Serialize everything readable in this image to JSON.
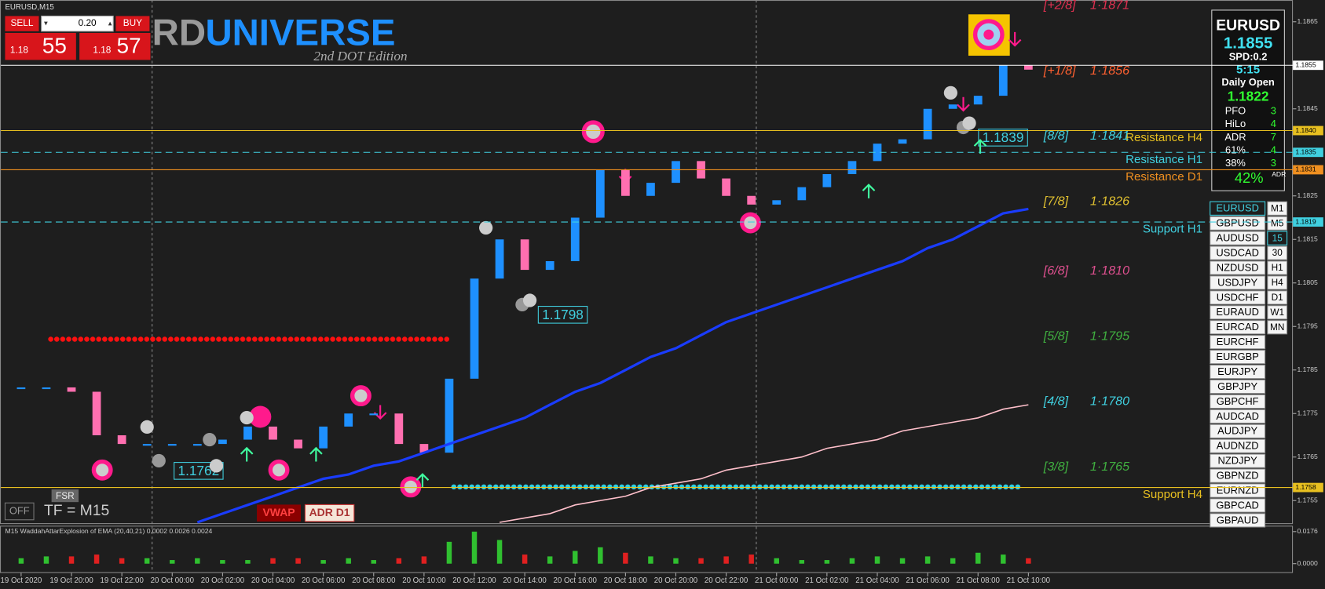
{
  "window_title": "EURUSD,M15",
  "trade_panel": {
    "sell": "SELL",
    "lot": "0.20",
    "buy": "BUY",
    "bid_big": "1.18",
    "bid_pips": "55",
    "ask_big": "1.18",
    "ask_pips": "57"
  },
  "logo": {
    "prefix": "RD",
    "name": "UNIVERSE",
    "edition": "2nd DOT Edition"
  },
  "info_panel": {
    "symbol": "EURUSD",
    "price": "1.1855",
    "spread": "SPD:0.2",
    "timer": "5:15",
    "daily_open_label": "Daily Open",
    "daily_open": "1.1822",
    "rows": [
      [
        "PFO",
        "3"
      ],
      [
        "HiLo",
        "4"
      ],
      [
        "ADR",
        "7"
      ],
      [
        "61%",
        "4"
      ],
      [
        "38%",
        "3"
      ]
    ],
    "adr_pct": "42%",
    "adr_label": "ADR"
  },
  "symbols": [
    "EURUSD",
    "GBPUSD",
    "AUDUSD",
    "USDCAD",
    "NZDUSD",
    "USDJPY",
    "USDCHF",
    "EURAUD",
    "EURCAD",
    "EURCHF",
    "EURGBP",
    "EURJPY",
    "GBPJPY",
    "GBPCHF",
    "AUDCAD",
    "AUDJPY",
    "AUDNZD",
    "NZDJPY",
    "GBPNZD",
    "EURNZD",
    "GBPCAD",
    "GBPAUD"
  ],
  "timeframes": [
    "M1",
    "M5",
    "15",
    "30",
    "H1",
    "H4",
    "D1",
    "W1",
    "MN"
  ],
  "buttons": {
    "fsr": "FSR",
    "off": "OFF",
    "tf": "TF = M15",
    "vwap": "VWAP",
    "adr": "ADR D1"
  },
  "annotations": [
    "1.1762",
    "1.1798",
    "1.1839"
  ],
  "chart_data": [
    {
      "type": "candlestick",
      "categories": [
        "19 Oct 2020",
        null,
        "19 Oct 20:00",
        null,
        "19 Oct 22:00",
        null,
        "20 Oct 00:00",
        null,
        "20 Oct 02:00",
        null,
        "20 Oct 04:00",
        null,
        "20 Oct 06:00",
        null,
        "20 Oct 08:00",
        null,
        "20 Oct 10:00",
        null,
        "20 Oct 12:00",
        null,
        "20 Oct 14:00",
        null,
        "20 Oct 16:00",
        null,
        "20 Oct 18:00",
        null,
        "20 Oct 20:00",
        null,
        "20 Oct 22:00",
        null,
        "21 Oct 00:00",
        null,
        "21 Oct 02:00",
        null,
        "21 Oct 04:00",
        null,
        "21 Oct 06:00",
        null,
        "21 Oct 08:00",
        null,
        "21 Oct 10:00"
      ],
      "series": [
        {
          "style": "candles",
          "up_color": "#1e90ff",
          "down_color": "#ff6fb0",
          "values": [
            1.1781,
            1.1781,
            1.178,
            1.177,
            1.1768,
            1.1768,
            1.1768,
            1.1768,
            1.1769,
            1.1772,
            1.1769,
            1.1767,
            1.1772,
            1.1775,
            1.1775,
            1.1768,
            1.1766,
            1.1783,
            1.1806,
            1.1815,
            1.1808,
            1.181,
            1.182,
            1.1831,
            1.1825,
            1.1828,
            1.1833,
            1.1829,
            1.1825,
            1.1823,
            1.1824,
            1.1827,
            1.183,
            1.1833,
            1.1837,
            1.1838,
            1.1845,
            1.1846,
            1.1848,
            1.1855,
            1.1854
          ]
        },
        {
          "style": "line",
          "color": "#1a3cff",
          "values": [
            null,
            null,
            null,
            null,
            null,
            null,
            null,
            1.175,
            1.1752,
            1.1754,
            1.1756,
            1.1758,
            1.176,
            1.1761,
            1.1763,
            1.1764,
            1.1766,
            1.1768,
            1.177,
            1.1772,
            1.1774,
            1.1777,
            1.178,
            1.1782,
            1.1785,
            1.1788,
            1.179,
            1.1793,
            1.1796,
            1.1798,
            1.18,
            1.1802,
            1.1804,
            1.1806,
            1.1808,
            1.181,
            1.1813,
            1.1815,
            1.1818,
            1.1821,
            1.1822
          ]
        },
        {
          "style": "line",
          "color": "#ffc0cb",
          "values": [
            null,
            null,
            null,
            null,
            null,
            null,
            null,
            null,
            null,
            null,
            null,
            null,
            null,
            null,
            null,
            null,
            null,
            null,
            null,
            1.175,
            1.1751,
            1.1752,
            1.1754,
            1.1755,
            1.1756,
            1.1758,
            1.1759,
            1.176,
            1.1762,
            1.1763,
            1.1764,
            1.1765,
            1.1767,
            1.1768,
            1.1769,
            1.1771,
            1.1772,
            1.1773,
            1.1774,
            1.1776,
            1.1777
          ]
        }
      ],
      "ylim": [
        1.175,
        1.187
      ],
      "yticks": [
        1.1755,
        1.1765,
        1.1775,
        1.1785,
        1.1795,
        1.1805,
        1.1815,
        1.1825,
        1.1835,
        1.1845,
        1.1855,
        1.1865
      ],
      "levels": [
        {
          "price": {
            "value": 1.1855,
            "label": "1.1855"
          },
          "color": "#ffffff",
          "dashed": false
        },
        {
          "name": "Resistance H4",
          "price": {
            "value": 1.184,
            "label": "1.1840"
          },
          "color": "#e8c020",
          "dashed": false
        },
        {
          "name": "Resistance H1",
          "price": {
            "value": 1.1835,
            "label": "1.1835"
          },
          "color": "#40d0e0",
          "dashed": true
        },
        {
          "name": "Resistance D1",
          "price": {
            "value": 1.1831,
            "label": "1.1831"
          },
          "color": "#f09020",
          "dashed": false
        },
        {
          "name": "Support H1",
          "price": {
            "value": 1.1819,
            "label": "1.1819"
          },
          "color": "#40d0e0",
          "dashed": true
        },
        {
          "name": "Support H4",
          "price": {
            "value": 1.1758,
            "label": "1.1758"
          },
          "color": "#e8c020",
          "dashed": false
        }
      ],
      "murrey": [
        {
          "label": "[+2/8]",
          "price": {
            "value": 1.1871,
            "label": "1·1871"
          },
          "color": "#e03050"
        },
        {
          "label": "[+1/8]",
          "price": {
            "value": 1.1856,
            "label": "1·1856"
          },
          "color": "#ff6030"
        },
        {
          "label": "[8/8]",
          "price": {
            "value": 1.1841,
            "label": "1·1841"
          },
          "color": "#40d0e0"
        },
        {
          "label": "[7/8]",
          "price": {
            "value": 1.1826,
            "label": "1·1826"
          },
          "color": "#e0c030"
        },
        {
          "label": "[6/8]",
          "price": {
            "value": 1.181,
            "label": "1·1810"
          },
          "color": "#e05090"
        },
        {
          "label": "[5/8]",
          "price": {
            "value": 1.1795,
            "label": "1·1795"
          },
          "color": "#40b040"
        },
        {
          "label": "[4/8]",
          "price": {
            "value": 1.178,
            "label": "1·1780"
          },
          "color": "#40d0e0"
        },
        {
          "label": "[3/8]",
          "price": {
            "value": 1.1765,
            "label": "1·1765"
          },
          "color": "#40b040"
        }
      ]
    },
    {
      "type": "bar",
      "title": "M15  WaddahAttarExplosion of EMA (20,40,21) 0.0002 0.0026 0.0024",
      "up_color": "#30c030",
      "down_color": "#e02020",
      "values": [
        0.003,
        0.004,
        0.004,
        0.005,
        0.003,
        0.003,
        0.002,
        0.003,
        0.002,
        0.002,
        0.003,
        0.003,
        0.002,
        0.003,
        0.002,
        0.003,
        0.004,
        0.012,
        0.0176,
        0.013,
        0.005,
        0.004,
        0.007,
        0.009,
        0.006,
        0.004,
        0.003,
        0.003,
        0.004,
        0.005,
        0.003,
        0.002,
        0.002,
        0.003,
        0.004,
        0.003,
        0.004,
        0.003,
        0.006,
        0.005,
        0.003
      ],
      "ylim": [
        0,
        0.0176
      ],
      "yticks": [
        {
          "value": 0,
          "label": "0.0000"
        },
        0.0176
      ]
    }
  ]
}
